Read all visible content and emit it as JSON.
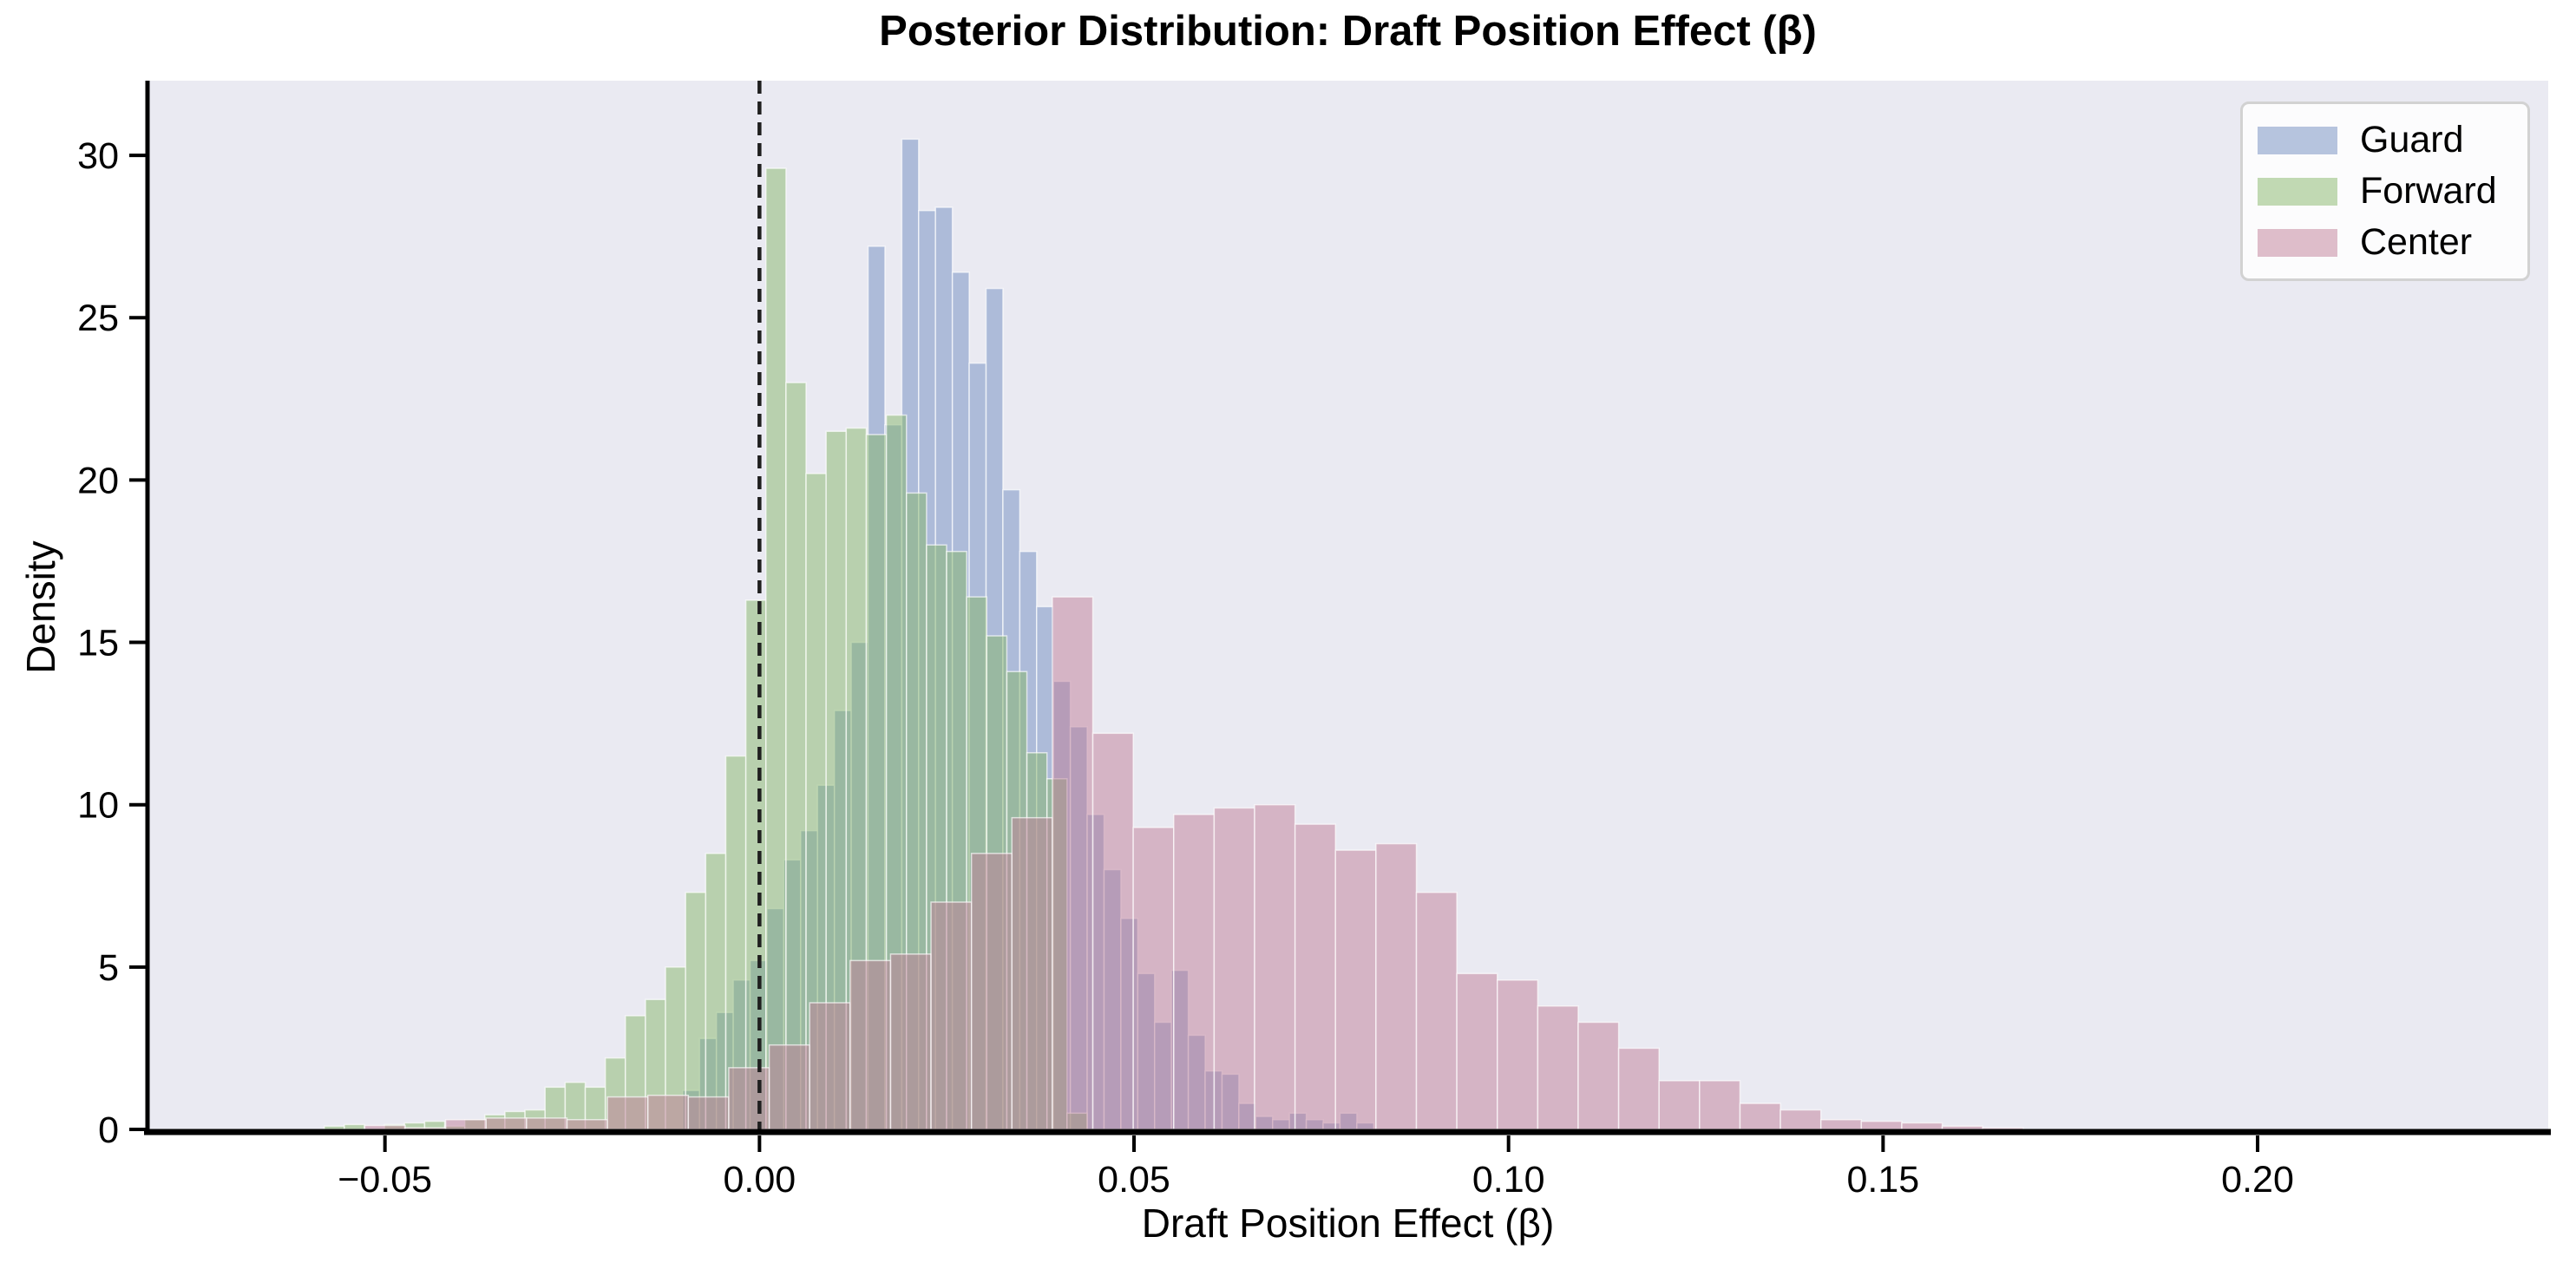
{
  "figure": {
    "background": "#ffffff",
    "plot_background": "#eaeaf2"
  },
  "chart_data": {
    "type": "histogram",
    "title": "Posterior Distribution: Draft Position Effect (β)",
    "xlabel": "Draft Position Effect (β)",
    "ylabel": "Density",
    "xlim": [
      -0.0817,
      0.2388
    ],
    "ylim": [
      0,
      32.3
    ],
    "grid": false,
    "legend_position": "upper-right",
    "bar_alpha": 0.5,
    "bar_edge_color": "rgba(255,255,255,0.65)",
    "x_ticks": [
      {
        "value": -0.05,
        "label": "−0.05"
      },
      {
        "value": 0.0,
        "label": "0.00"
      },
      {
        "value": 0.05,
        "label": "0.05"
      },
      {
        "value": 0.1,
        "label": "0.10"
      },
      {
        "value": 0.15,
        "label": "0.15"
      },
      {
        "value": 0.2,
        "label": "0.20"
      }
    ],
    "y_ticks": [
      {
        "value": 0,
        "label": "0"
      },
      {
        "value": 5,
        "label": "5"
      },
      {
        "value": 10,
        "label": "10"
      },
      {
        "value": 15,
        "label": "15"
      },
      {
        "value": 20,
        "label": "20"
      },
      {
        "value": 25,
        "label": "25"
      },
      {
        "value": 30,
        "label": "30"
      }
    ],
    "zero_line": {
      "x": 0.0,
      "style": "dashed",
      "color": "#1f1f1f"
    },
    "legend": {
      "entries": [
        {
          "label": "Guard",
          "color": "#6f8cbf"
        },
        {
          "label": "Forward",
          "color": "#85b569"
        },
        {
          "label": "Center",
          "color": "#c07e97"
        }
      ]
    },
    "series": [
      {
        "name": "Guard",
        "color": "#6f8cbf",
        "bin_start": -0.01025,
        "bin_width": 0.00225,
        "heights": [
          1.2,
          2.8,
          3.6,
          4.6,
          5.2,
          6.8,
          8.3,
          9.2,
          10.6,
          12.9,
          15.0,
          27.2,
          21.7,
          30.5,
          28.3,
          28.4,
          26.4,
          23.6,
          25.9,
          19.7,
          17.8,
          16.1,
          13.8,
          12.4,
          9.7,
          8.0,
          6.5,
          4.8,
          3.3,
          4.9,
          2.9,
          1.8,
          1.7,
          0.8,
          0.4,
          0.3,
          0.5,
          0.3,
          0.2,
          0.5,
          0.2
        ]
      },
      {
        "name": "Forward",
        "color": "#85b569",
        "bin_start": -0.0581,
        "bin_width": 0.00268,
        "heights": [
          0.1,
          0.15,
          0,
          0.15,
          0.2,
          0.25,
          0.1,
          0.3,
          0.45,
          0.55,
          0.6,
          1.3,
          1.45,
          1.3,
          2.2,
          3.5,
          4.0,
          5.0,
          7.3,
          8.5,
          11.5,
          16.3,
          29.6,
          23.0,
          20.2,
          21.5,
          21.6,
          21.4,
          22.0,
          19.6,
          18.0,
          17.8,
          16.4,
          15.2,
          14.1,
          11.6,
          10.8,
          0.5
        ]
      },
      {
        "name": "Center",
        "color": "#c07e97",
        "bin_start": -0.0527,
        "bin_width": 0.0054,
        "heights": [
          0.12,
          0.05,
          0.3,
          0.35,
          0.35,
          0.3,
          1.0,
          1.05,
          1.0,
          1.9,
          2.6,
          3.9,
          5.2,
          5.4,
          7.0,
          8.5,
          9.6,
          16.4,
          12.2,
          9.3,
          9.7,
          9.9,
          10.0,
          9.4,
          8.6,
          8.8,
          7.3,
          4.8,
          4.6,
          3.8,
          3.3,
          2.5,
          1.5,
          1.5,
          0.8,
          0.6,
          0.3,
          0.25,
          0.2,
          0.1,
          0.05
        ]
      }
    ]
  }
}
